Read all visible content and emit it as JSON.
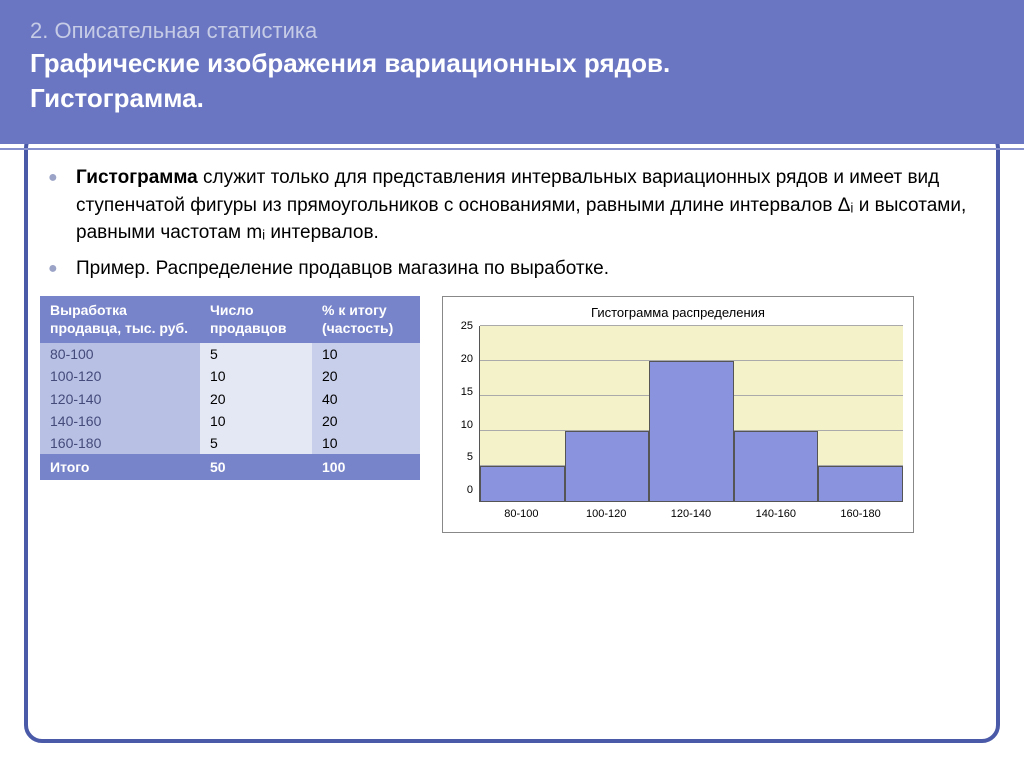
{
  "colors": {
    "header_bg": "#6a76c2",
    "pretitle": "#c6cce6",
    "title": "#ffffff",
    "bullet": "#9ba3c7",
    "frame_border": "#4a5aa8",
    "header_line": "#8690cc",
    "table_header_bg": "#7884c9",
    "table_col0_bg": "#b8c0e4",
    "table_col1_bg": "#e4e7f4",
    "table_col2_bg": "#c8cfea",
    "table_total_bg": "#7884c9",
    "chart_bar": "#8a93dd",
    "chart_bg": "#f4f2c8",
    "chart_grid": "#aaaaaa",
    "chart_border": "#888888"
  },
  "header": {
    "pretitle": "2. Описательная статистика",
    "title_line1": "Графические изображения вариационных рядов.",
    "title_line2": "Гистограмма."
  },
  "bullets": {
    "item1_strong": "Гистограмма",
    "item1_rest": " служит только для представления интервальных вариационных рядов и имеет вид ступенчатой фигуры из прямоугольников с основаниями, равными длине интервалов Δᵢ и высотами, равными частотам mᵢ интервалов.",
    "item2": "Пример. Распределение продавцов магазина по выработке."
  },
  "table": {
    "headers": [
      "Выработка продавца, тыс. руб.",
      "Число продавцов",
      "% к итогу (частость)"
    ],
    "rows": [
      [
        "80-100",
        "5",
        "10"
      ],
      [
        "100-120",
        "10",
        "20"
      ],
      [
        "120-140",
        "20",
        "40"
      ],
      [
        "140-160",
        "10",
        "20"
      ],
      [
        "160-180",
        "5",
        "10"
      ]
    ],
    "total": [
      "Итого",
      "50",
      "100"
    ]
  },
  "chart": {
    "type": "histogram",
    "title": "Гистограмма распределения",
    "categories": [
      "80-100",
      "100-120",
      "120-140",
      "140-160",
      "160-180"
    ],
    "values": [
      5,
      10,
      20,
      10,
      5
    ],
    "ylim": [
      0,
      25
    ],
    "ytick_step": 5,
    "yticks": [
      "25",
      "20",
      "15",
      "10",
      "5",
      "0"
    ],
    "bar_color": "#8a93dd",
    "background_color": "#f4f2c8",
    "grid_color": "#aaaaaa",
    "title_fontsize": 13,
    "label_fontsize": 11,
    "bar_width": 1.0
  }
}
